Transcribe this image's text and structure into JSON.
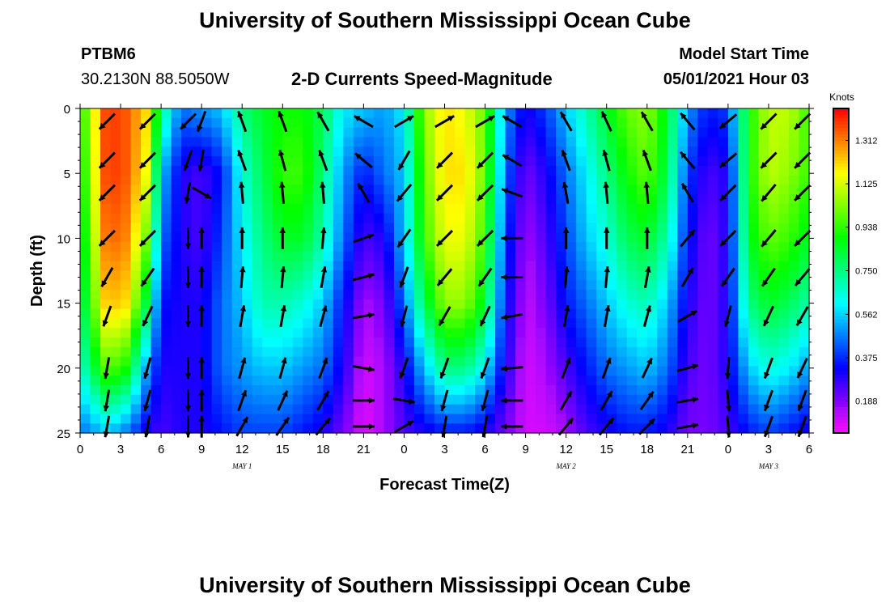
{
  "header": {
    "title": "University of Southern Mississippi Ocean Cube",
    "station": "PTBM6",
    "coords": "30.2130N  88.5050W",
    "subtitle": "2-D Currents Speed-Magnitude",
    "model_start_label": "Model Start Time",
    "model_start_value": "05/01/2021 Hour 03"
  },
  "footer": {
    "title": "University of Southern Mississippi Ocean Cube"
  },
  "chart_data": {
    "type": "heatmap",
    "xlabel": "Forecast Time(Z)",
    "ylabel": "Depth (ft)",
    "x_ticks": [
      "0",
      "3",
      "6",
      "9",
      "12",
      "15",
      "18",
      "21",
      "0",
      "3",
      "6",
      "9",
      "12",
      "15",
      "18",
      "21",
      "0",
      "3",
      "6"
    ],
    "x_range_hours": [
      0,
      54
    ],
    "y_ticks": [
      0,
      5,
      10,
      15,
      20,
      25
    ],
    "ylim": [
      0,
      25
    ],
    "y_inverted": true,
    "date_labels": [
      {
        "label": "MAY 1",
        "hour": 12
      },
      {
        "label": "MAY 2",
        "hour": 36
      },
      {
        "label": "MAY 3",
        "hour": 51
      }
    ],
    "colorbar": {
      "unit": "Knots",
      "ticks": [
        "1.312",
        "1.125",
        "0.938",
        "0.750",
        "0.562",
        "0.375",
        "0.188"
      ],
      "tick_values": [
        1.312,
        1.125,
        0.938,
        0.75,
        0.562,
        0.375,
        0.188
      ],
      "range": [
        0.05,
        1.45
      ]
    },
    "speed_field_columns": {
      "hours": [
        0,
        2,
        3.5,
        5,
        6,
        7.5,
        9,
        10.5,
        12,
        13.5,
        15,
        16.5,
        18,
        19.5,
        21,
        22.5,
        24,
        25.5,
        27,
        28.5,
        30,
        31.5,
        33,
        34.5,
        36,
        37.5,
        39,
        40.5,
        42,
        43.5,
        45,
        46.5,
        48,
        49.5,
        51,
        52.5,
        54
      ],
      "depths": [
        0,
        5,
        10,
        15,
        20,
        25
      ],
      "speed_knots": [
        [
          0.9,
          0.85,
          0.8,
          0.75,
          0.65,
          0.45
        ],
        [
          1.4,
          1.4,
          1.35,
          1.25,
          1.0,
          0.55
        ],
        [
          1.35,
          1.35,
          1.3,
          1.2,
          0.9,
          0.45
        ],
        [
          1.2,
          1.15,
          1.0,
          0.8,
          0.5,
          0.3
        ],
        [
          0.75,
          0.55,
          0.45,
          0.35,
          0.3,
          0.25
        ],
        [
          0.45,
          0.3,
          0.3,
          0.3,
          0.3,
          0.3
        ],
        [
          0.5,
          0.25,
          0.25,
          0.3,
          0.3,
          0.3
        ],
        [
          0.55,
          0.35,
          0.4,
          0.45,
          0.45,
          0.35
        ],
        [
          0.75,
          0.65,
          0.6,
          0.55,
          0.5,
          0.4
        ],
        [
          0.85,
          0.8,
          0.75,
          0.7,
          0.55,
          0.4
        ],
        [
          0.9,
          0.95,
          0.85,
          0.7,
          0.55,
          0.4
        ],
        [
          0.9,
          0.95,
          0.85,
          0.65,
          0.5,
          0.35
        ],
        [
          0.8,
          0.75,
          0.7,
          0.55,
          0.45,
          0.3
        ],
        [
          0.6,
          0.5,
          0.45,
          0.35,
          0.3,
          0.2
        ],
        [
          0.55,
          0.35,
          0.25,
          0.15,
          0.1,
          0.08
        ],
        [
          0.5,
          0.45,
          0.3,
          0.2,
          0.15,
          0.15
        ],
        [
          0.6,
          0.55,
          0.55,
          0.45,
          0.3,
          0.25
        ],
        [
          1.05,
          1.0,
          0.95,
          0.8,
          0.55,
          0.3
        ],
        [
          1.2,
          1.2,
          1.15,
          1.05,
          0.75,
          0.35
        ],
        [
          1.15,
          1.2,
          1.15,
          1.05,
          0.75,
          0.35
        ],
        [
          1.0,
          1.0,
          0.95,
          0.85,
          0.6,
          0.3
        ],
        [
          0.5,
          0.45,
          0.4,
          0.35,
          0.3,
          0.2
        ],
        [
          0.3,
          0.2,
          0.15,
          0.12,
          0.1,
          0.1
        ],
        [
          0.4,
          0.3,
          0.25,
          0.2,
          0.15,
          0.1
        ],
        [
          0.55,
          0.45,
          0.4,
          0.35,
          0.25,
          0.15
        ],
        [
          0.7,
          0.6,
          0.55,
          0.45,
          0.35,
          0.25
        ],
        [
          0.85,
          0.75,
          0.65,
          0.55,
          0.45,
          0.3
        ],
        [
          1.0,
          0.9,
          0.8,
          0.65,
          0.5,
          0.35
        ],
        [
          1.05,
          1.0,
          0.85,
          0.7,
          0.55,
          0.35
        ],
        [
          0.85,
          0.8,
          0.7,
          0.55,
          0.45,
          0.3
        ],
        [
          0.5,
          0.4,
          0.35,
          0.3,
          0.25,
          0.2
        ],
        [
          0.35,
          0.25,
          0.2,
          0.2,
          0.2,
          0.2
        ],
        [
          0.4,
          0.3,
          0.3,
          0.3,
          0.3,
          0.25
        ],
        [
          0.9,
          0.9,
          0.85,
          0.75,
          0.55,
          0.35
        ],
        [
          1.1,
          1.1,
          1.0,
          0.85,
          0.65,
          0.4
        ],
        [
          1.1,
          1.05,
          0.95,
          0.8,
          0.6,
          0.35
        ],
        [
          0.95,
          0.95,
          0.85,
          0.7,
          0.5,
          0.3
        ]
      ]
    },
    "vector_columns": {
      "hours": [
        2,
        5,
        8,
        9,
        12,
        15,
        18,
        21,
        24,
        27,
        30,
        32,
        36,
        39,
        42,
        45,
        48,
        51,
        53.5
      ],
      "depths": [
        1,
        4,
        6.5,
        10,
        13,
        16,
        20,
        22.5,
        24.5
      ],
      "direction_deg": [
        [
          225,
          225,
          225,
          225,
          210,
          200,
          190,
          190,
          190
        ],
        [
          225,
          225,
          225,
          225,
          215,
          205,
          195,
          195,
          190
        ],
        [
          225,
          200,
          190,
          180,
          180,
          180,
          180,
          180,
          180
        ],
        [
          200,
          190,
          120,
          0,
          0,
          0,
          0,
          0,
          0
        ],
        [
          340,
          340,
          355,
          0,
          5,
          10,
          15,
          20,
          30
        ],
        [
          340,
          345,
          355,
          0,
          5,
          10,
          15,
          25,
          35
        ],
        [
          330,
          340,
          355,
          5,
          10,
          15,
          20,
          30,
          40
        ],
        [
          300,
          310,
          330,
          70,
          75,
          80,
          100,
          90,
          90
        ],
        [
          60,
          210,
          220,
          215,
          200,
          195,
          200,
          100,
          60
        ],
        [
          60,
          225,
          225,
          225,
          220,
          210,
          200,
          195,
          190
        ],
        [
          60,
          225,
          225,
          225,
          215,
          205,
          200,
          195,
          190
        ],
        [
          300,
          300,
          290,
          270,
          270,
          260,
          265,
          270,
          270
        ],
        [
          330,
          340,
          350,
          0,
          5,
          10,
          20,
          30,
          40
        ],
        [
          335,
          345,
          355,
          0,
          5,
          10,
          20,
          30,
          40
        ],
        [
          330,
          340,
          355,
          0,
          10,
          15,
          25,
          35,
          45
        ],
        [
          320,
          320,
          330,
          40,
          30,
          60,
          75,
          80,
          80
        ],
        [
          230,
          230,
          225,
          225,
          215,
          195,
          185,
          175,
          175
        ],
        [
          225,
          225,
          220,
          220,
          215,
          205,
          200,
          200,
          200
        ],
        [
          225,
          225,
          225,
          225,
          220,
          210,
          205,
          200,
          200
        ]
      ]
    }
  }
}
